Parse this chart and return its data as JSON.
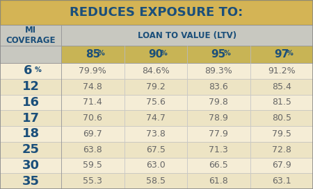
{
  "title": "REDUCES EXPOSURE TO:",
  "col_header_top": "LOAN TO VALUE (LTV)",
  "col_header_left": "MI\nCOVERAGE",
  "ltv_labels": [
    "85%",
    "90%",
    "95%",
    "97%"
  ],
  "mi_coverage": [
    "6%",
    "12",
    "16",
    "17",
    "18",
    "25",
    "30",
    "35"
  ],
  "mi_coverage_special": [
    true,
    false,
    false,
    false,
    false,
    false,
    false,
    false
  ],
  "values": [
    [
      "79.9%",
      "84.6%",
      "89.3%",
      "91.2%"
    ],
    [
      "74.8",
      "79.2",
      "83.6",
      "85.4"
    ],
    [
      "71.4",
      "75.6",
      "79.8",
      "81.5"
    ],
    [
      "70.6",
      "74.7",
      "78.9",
      "80.5"
    ],
    [
      "69.7",
      "73.8",
      "77.9",
      "79.5"
    ],
    [
      "63.8",
      "67.5",
      "71.3",
      "72.8"
    ],
    [
      "59.5",
      "63.0",
      "66.5",
      "67.9"
    ],
    [
      "55.3",
      "58.5",
      "61.8",
      "63.1"
    ]
  ],
  "title_bg": "#D4B455",
  "header_bg": "#C8C8C0",
  "ltv_header_bg": "#C8B455",
  "row_bg_light": "#F5EDD6",
  "row_bg_mid": "#EDE4C4",
  "left_col_bg_light": "#E8E0CC",
  "text_dark_blue": "#1B4F7A",
  "text_data_color": "#666666",
  "title_fontsize": 13,
  "header_fontsize": 8.5,
  "ltv_fontsize": 11,
  "row_label_fontsize": 13,
  "data_fontsize": 9
}
